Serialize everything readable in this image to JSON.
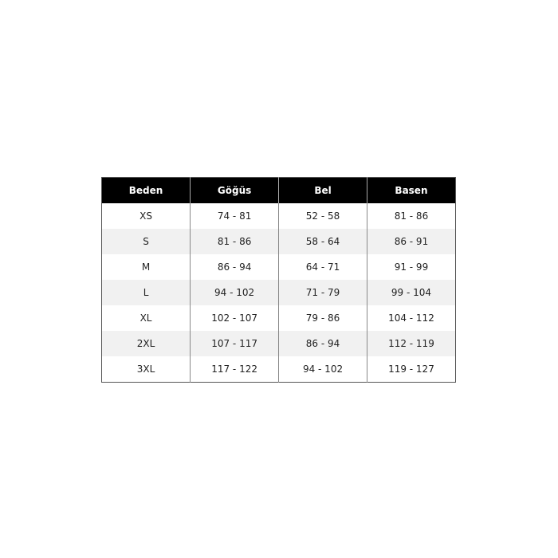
{
  "size_table": {
    "headers": [
      "Beden",
      "Göğüs",
      "Bel",
      "Basen"
    ],
    "rows": [
      [
        "XS",
        "74 - 81",
        "52 - 58",
        "81 - 86"
      ],
      [
        "S",
        "81 - 86",
        "58 - 64",
        "86 - 91"
      ],
      [
        "M",
        "86 - 94",
        "64 - 71",
        "91 - 99"
      ],
      [
        "L",
        "94 - 102",
        "71 - 79",
        "99 - 104"
      ],
      [
        "XL",
        "102 - 107",
        "79 - 86",
        "104 - 112"
      ],
      [
        "2XL",
        "107 - 117",
        "86 - 94",
        "112 - 119"
      ],
      [
        "3XL",
        "117 - 122",
        "94 - 102",
        "119 - 127"
      ]
    ]
  }
}
